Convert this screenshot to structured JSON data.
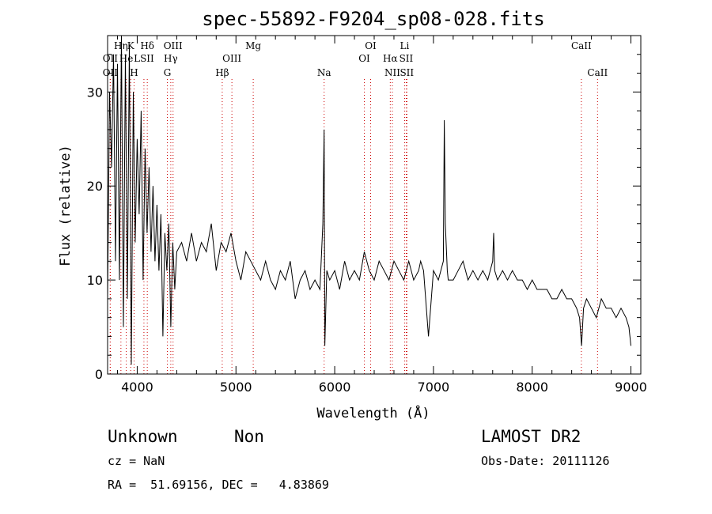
{
  "chart_data": {
    "type": "line",
    "title": "spec-55892-F9204_sp08-028.fits",
    "xlabel": "Wavelength (Å)",
    "ylabel": "Flux (relative)",
    "xlim": [
      3700,
      9100
    ],
    "ylim": [
      0,
      36
    ],
    "xticks": [
      4000,
      5000,
      6000,
      7000,
      8000,
      9000
    ],
    "yticks": [
      0,
      10,
      20,
      30
    ],
    "series": [
      {
        "name": "flux",
        "x": [
          3700,
          3720,
          3740,
          3760,
          3780,
          3800,
          3820,
          3840,
          3860,
          3880,
          3900,
          3920,
          3940,
          3960,
          3980,
          4000,
          4020,
          4040,
          4060,
          4080,
          4100,
          4120,
          4140,
          4160,
          4180,
          4200,
          4220,
          4240,
          4260,
          4280,
          4300,
          4320,
          4340,
          4360,
          4380,
          4400,
          4450,
          4500,
          4550,
          4600,
          4650,
          4700,
          4750,
          4800,
          4850,
          4900,
          4950,
          5000,
          5050,
          5100,
          5150,
          5200,
          5250,
          5300,
          5350,
          5400,
          5450,
          5500,
          5550,
          5600,
          5650,
          5700,
          5750,
          5800,
          5850,
          5880,
          5893,
          5900,
          5920,
          5950,
          6000,
          6050,
          6100,
          6150,
          6200,
          6250,
          6300,
          6350,
          6400,
          6450,
          6500,
          6550,
          6600,
          6650,
          6700,
          6750,
          6800,
          6850,
          6870,
          6900,
          6950,
          7000,
          7050,
          7100,
          7110,
          7120,
          7140,
          7150,
          7200,
          7250,
          7300,
          7350,
          7400,
          7450,
          7500,
          7550,
          7600,
          7610,
          7620,
          7650,
          7700,
          7750,
          7800,
          7850,
          7900,
          7950,
          8000,
          8050,
          8100,
          8150,
          8200,
          8250,
          8300,
          8350,
          8400,
          8450,
          8480,
          8500,
          8520,
          8550,
          8600,
          8650,
          8700,
          8750,
          8800,
          8850,
          8900,
          8950,
          8980,
          9000
        ],
        "values": [
          8,
          30,
          22,
          34,
          12,
          33,
          10,
          36,
          5,
          34,
          8,
          35,
          1,
          30,
          14,
          25,
          17,
          28,
          10,
          24,
          15,
          22,
          13,
          20,
          12,
          18,
          11,
          17,
          4,
          15,
          11,
          16,
          5,
          14,
          9,
          13,
          14,
          12,
          15,
          12,
          14,
          13,
          16,
          11,
          14,
          13,
          15,
          12,
          10,
          13,
          12,
          11,
          10,
          12,
          10,
          9,
          11,
          10,
          12,
          8,
          10,
          11,
          9,
          10,
          9,
          16,
          26,
          3,
          11,
          10,
          11,
          9,
          12,
          10,
          11,
          10,
          13,
          11,
          10,
          12,
          11,
          10,
          12,
          11,
          10,
          12,
          10,
          11,
          12,
          11,
          4,
          11,
          10,
          12,
          27,
          16,
          11,
          10,
          10,
          11,
          12,
          10,
          11,
          10,
          11,
          10,
          12,
          15,
          11,
          10,
          11,
          10,
          11,
          10,
          10,
          9,
          10,
          9,
          9,
          9,
          8,
          8,
          9,
          8,
          8,
          7,
          6,
          3,
          7,
          8,
          7,
          6,
          8,
          7,
          7,
          6,
          7,
          6,
          5,
          3
        ]
      }
    ],
    "emission_lines": [
      {
        "label": "OII",
        "x": 3727,
        "row": 1
      },
      {
        "label": "OII",
        "x": 3727,
        "row": 2
      },
      {
        "label": "Hη",
        "x": 3835,
        "row": 0
      },
      {
        "label": "He",
        "x": 3889,
        "row": 1
      },
      {
        "label": "K",
        "x": 3934,
        "row": 0
      },
      {
        "label": "LSII",
        "x": 4068,
        "row": 1
      },
      {
        "label": "H",
        "x": 3968,
        "row": 2
      },
      {
        "label": "Hδ",
        "x": 4102,
        "row": 0
      },
      {
        "label": "OIII",
        "x": 4363,
        "row": 0
      },
      {
        "label": "Hγ",
        "x": 4340,
        "row": 1
      },
      {
        "label": "G",
        "x": 4305,
        "row": 2
      },
      {
        "label": "Hβ",
        "x": 4861,
        "row": 2
      },
      {
        "label": "OIII",
        "x": 4959,
        "row": 1
      },
      {
        "label": "Mg",
        "x": 5175,
        "row": 0
      },
      {
        "label": "Na",
        "x": 5893,
        "row": 2
      },
      {
        "label": "OI",
        "x": 6300,
        "row": 1
      },
      {
        "label": "OI",
        "x": 6364,
        "row": 0
      },
      {
        "label": "Hα",
        "x": 6563,
        "row": 1
      },
      {
        "label": "NII",
        "x": 6584,
        "row": 2
      },
      {
        "label": "Li",
        "x": 6708,
        "row": 0
      },
      {
        "label": "SII",
        "x": 6724,
        "row": 1
      },
      {
        "label": "SII",
        "x": 6731,
        "row": 2
      },
      {
        "label": "CaII",
        "x": 8498,
        "row": 0
      },
      {
        "label": "CaII",
        "x": 8662,
        "row": 2
      }
    ]
  },
  "info": {
    "class": "Unknown",
    "subclass": "Non",
    "survey": "LAMOST DR2",
    "cz": "cz = NaN",
    "obs_date": "Obs-Date: 20111126",
    "coords": "RA =  51.69156, DEC =   4.83869"
  },
  "colors": {
    "line_marker": "#cc0000",
    "spectrum": "#000000"
  }
}
